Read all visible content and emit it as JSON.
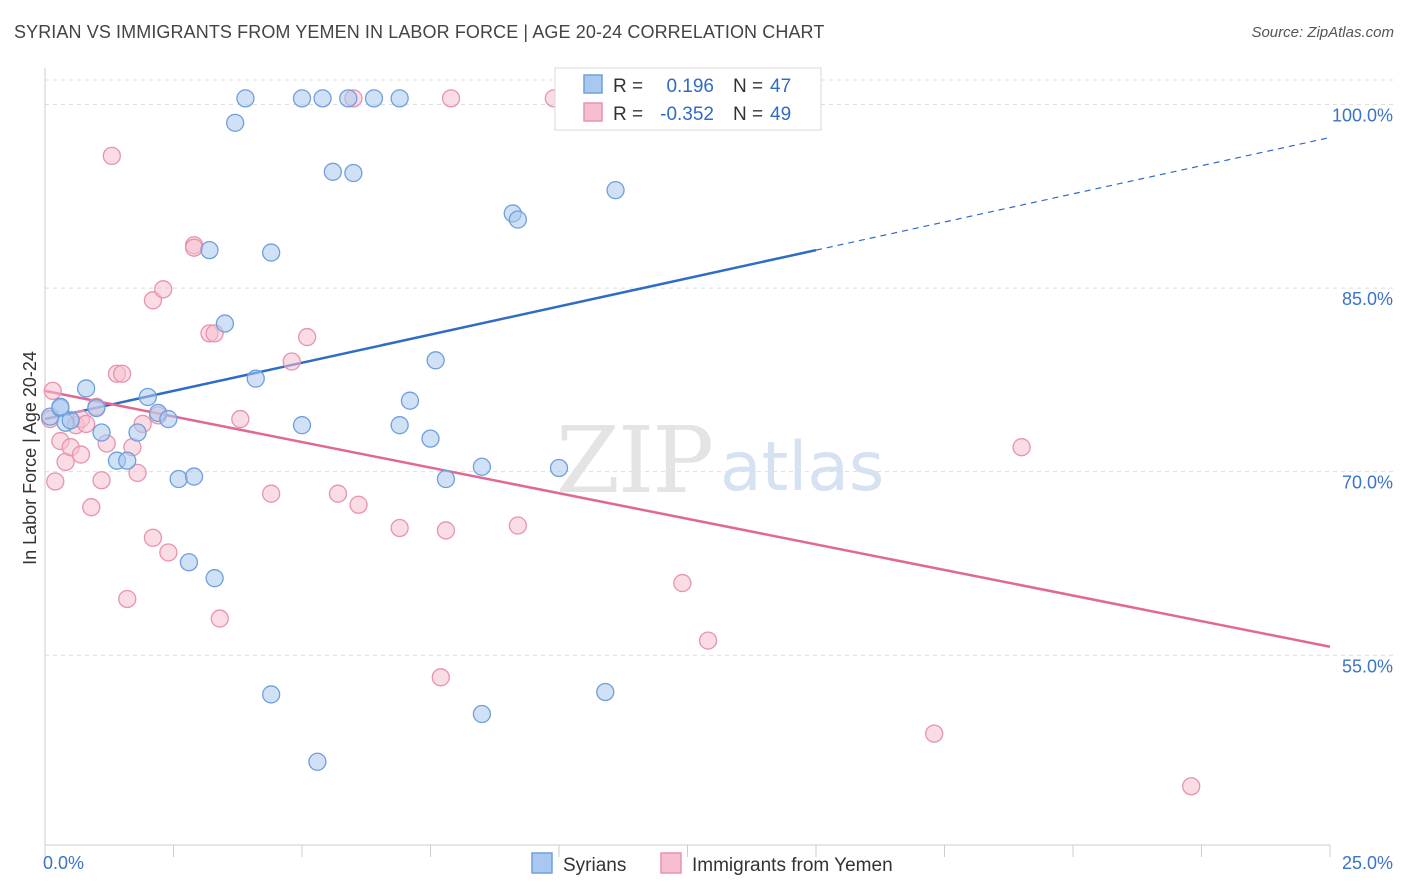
{
  "title": "SYRIAN VS IMMIGRANTS FROM YEMEN IN LABOR FORCE | AGE 20-24 CORRELATION CHART",
  "source": "Source: ZipAtlas.com",
  "watermark": {
    "zip": "ZIP",
    "atlas": "atlas"
  },
  "legend": {
    "r_label": "R =",
    "n_label": "N =",
    "series": [
      {
        "r": "0.196",
        "n": "47"
      },
      {
        "r": "-0.352",
        "n": "49"
      }
    ]
  },
  "colors": {
    "syrians_fill": "#a9c8ef",
    "syrians_stroke": "#6f9fdc",
    "syrians_line": "#2f6cc6",
    "yemen_fill": "#f6bfd0",
    "yemen_stroke": "#e893ad",
    "yemen_line": "#e06894",
    "tick_text": "#3b73c8",
    "grid": "#dddddd"
  },
  "chart_data": {
    "type": "scatter",
    "title": "SYRIAN VS IMMIGRANTS FROM YEMEN IN LABOR FORCE | AGE 20-24 CORRELATION CHART",
    "xlabel": "",
    "ylabel": "In Labor Force | Age 20-24",
    "xlim": [
      0,
      25
    ],
    "ylim": [
      39.5,
      102
    ],
    "x_tick_labels": [
      "0.0%",
      "25.0%"
    ],
    "y_ticks": [
      55,
      70,
      85,
      100
    ],
    "y_tick_labels": [
      "55.0%",
      "70.0%",
      "85.0%",
      "100.0%"
    ],
    "grid": true,
    "legend_position": "top-center",
    "series": [
      {
        "name": "Syrians",
        "r": 0.196,
        "n": 47,
        "trend": {
          "x0": 0,
          "y0": 74.3,
          "x1": 15,
          "y1": 88.1,
          "dashed_to_x": 25,
          "dashed_to_y": 97.3
        },
        "points": [
          [
            0.1,
            74.5
          ],
          [
            0.3,
            75.2
          ],
          [
            0.3,
            75.3
          ],
          [
            0.4,
            74.0
          ],
          [
            0.5,
            74.2
          ],
          [
            0.8,
            76.8
          ],
          [
            1.0,
            75.2
          ],
          [
            1.1,
            73.2
          ],
          [
            1.4,
            70.9
          ],
          [
            1.6,
            70.9
          ],
          [
            1.8,
            73.2
          ],
          [
            2.0,
            76.1
          ],
          [
            2.2,
            74.8
          ],
          [
            2.4,
            74.3
          ],
          [
            2.6,
            69.4
          ],
          [
            2.9,
            69.6
          ],
          [
            2.8,
            62.6
          ],
          [
            3.2,
            88.1
          ],
          [
            3.3,
            61.3
          ],
          [
            3.5,
            82.1
          ],
          [
            3.7,
            98.5
          ],
          [
            3.9,
            100.5
          ],
          [
            4.1,
            77.6
          ],
          [
            4.4,
            51.8
          ],
          [
            4.4,
            87.9
          ],
          [
            5.0,
            73.8
          ],
          [
            5.0,
            100.5
          ],
          [
            5.3,
            46.3
          ],
          [
            5.4,
            100.5
          ],
          [
            5.6,
            94.5
          ],
          [
            5.9,
            100.5
          ],
          [
            6.0,
            94.4
          ],
          [
            6.4,
            100.5
          ],
          [
            6.9,
            73.8
          ],
          [
            6.9,
            100.5
          ],
          [
            7.1,
            75.8
          ],
          [
            7.5,
            72.7
          ],
          [
            7.6,
            79.1
          ],
          [
            7.8,
            69.4
          ],
          [
            8.5,
            70.4
          ],
          [
            8.5,
            50.2
          ],
          [
            9.1,
            91.1
          ],
          [
            9.2,
            90.6
          ],
          [
            10.0,
            70.3
          ],
          [
            10.2,
            100.5
          ],
          [
            10.9,
            52.0
          ],
          [
            11.1,
            93.0
          ]
        ]
      },
      {
        "name": "Immigrants from Yemen",
        "r": -0.352,
        "n": 49,
        "trend": {
          "x0": 0,
          "y0": 76.6,
          "x1": 25,
          "y1": 55.7
        },
        "points": [
          [
            0.1,
            74.3
          ],
          [
            0.2,
            69.2
          ],
          [
            0.3,
            72.5
          ],
          [
            0.4,
            70.8
          ],
          [
            0.5,
            72.0
          ],
          [
            0.6,
            73.8
          ],
          [
            0.7,
            71.4
          ],
          [
            0.7,
            74.3
          ],
          [
            0.8,
            73.9
          ],
          [
            0.9,
            67.1
          ],
          [
            1.0,
            75.3
          ],
          [
            1.1,
            69.3
          ],
          [
            1.2,
            72.3
          ],
          [
            1.3,
            95.8
          ],
          [
            1.4,
            78.0
          ],
          [
            1.5,
            78.0
          ],
          [
            1.6,
            59.6
          ],
          [
            1.7,
            72.0
          ],
          [
            1.8,
            69.9
          ],
          [
            1.9,
            73.9
          ],
          [
            2.1,
            84.0
          ],
          [
            2.1,
            64.6
          ],
          [
            2.2,
            74.6
          ],
          [
            2.3,
            84.9
          ],
          [
            2.4,
            63.4
          ],
          [
            2.9,
            88.5
          ],
          [
            2.9,
            88.3
          ],
          [
            3.2,
            81.3
          ],
          [
            3.3,
            81.3
          ],
          [
            3.4,
            58.0
          ],
          [
            3.8,
            74.3
          ],
          [
            4.4,
            68.2
          ],
          [
            4.8,
            79.0
          ],
          [
            5.1,
            81.0
          ],
          [
            5.7,
            68.2
          ],
          [
            6.0,
            100.5
          ],
          [
            6.1,
            67.3
          ],
          [
            6.9,
            65.4
          ],
          [
            7.7,
            53.2
          ],
          [
            7.8,
            65.2
          ],
          [
            7.9,
            100.5
          ],
          [
            9.2,
            65.6
          ],
          [
            9.9,
            100.5
          ],
          [
            12.4,
            60.9
          ],
          [
            12.9,
            56.2
          ],
          [
            17.3,
            48.6
          ],
          [
            19.0,
            72.0
          ],
          [
            22.3,
            44.3
          ],
          [
            0.15,
            76.6
          ]
        ]
      }
    ]
  },
  "bottom_legend": [
    "Syrians",
    "Immigrants from Yemen"
  ]
}
